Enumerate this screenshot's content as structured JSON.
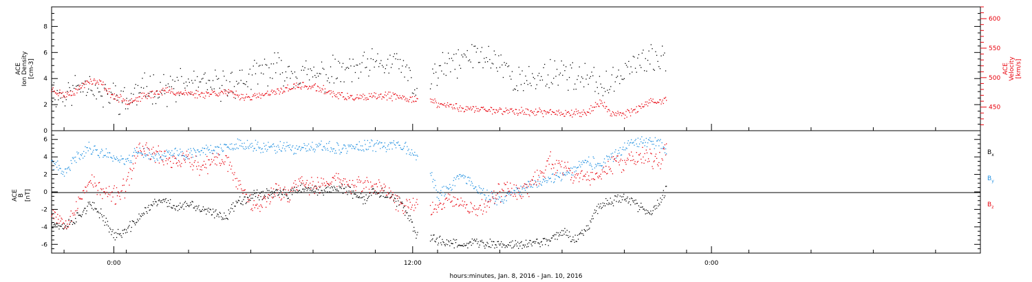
{
  "figure": {
    "xlabel": "hours:minutes, Jan.  8, 2016 - Jan. 10, 2016",
    "x_tick_labels": [
      "0:00",
      "12:00",
      "0:00"
    ],
    "x_tick_hours": [
      0,
      12,
      24
    ],
    "x_range_hours": [
      -2.5,
      34.8
    ],
    "data_gap_hours": [
      12.2,
      12.7
    ],
    "colors": {
      "black": "#000000",
      "red": "#e8000b",
      "blue": "#1f8fe0"
    }
  },
  "panels": [
    {
      "id": "density-velocity",
      "left_ylabel_lines": [
        "ACE",
        "Ion Density"
      ],
      "left_ylabel_units": "[cm-3]",
      "right_ylabel_lines": [
        "ACE",
        "Velocity"
      ],
      "right_ylabel_units": "[km/s]",
      "left_ticks": [
        "0",
        "2",
        "4",
        "6",
        "8"
      ],
      "right_ticks": [
        "450",
        "500",
        "550",
        "600"
      ]
    },
    {
      "id": "magnetic-field",
      "ylabel_lines": [
        "ACE",
        "B"
      ],
      "ylabel_units": "[nT]",
      "ticks": [
        "-6",
        "-4",
        "-2",
        "0",
        "2",
        "4",
        "6"
      ],
      "legend": [
        {
          "label": "Bx",
          "color": "#000000"
        },
        {
          "label": "By",
          "color": "#1f8fe0"
        },
        {
          "label": "Bz",
          "color": "#e8000b"
        }
      ]
    }
  ],
  "chart_data": [
    {
      "type": "scatter",
      "x_unit": "hours from 0:00 Jan. 9, 2016",
      "ylim": [
        0,
        9.5
      ],
      "y2lim": [
        410,
        620
      ],
      "series": [
        {
          "name": "ACE Ion Density",
          "axis": "left",
          "color": "#000000",
          "x": [
            -2.5,
            -2,
            -1.5,
            -1,
            -0.5,
            0,
            0.5,
            1,
            1.5,
            2,
            2.5,
            3,
            3.5,
            4,
            4.5,
            5,
            5.5,
            6,
            6.5,
            7,
            7.5,
            8,
            8.5,
            9,
            9.5,
            10,
            10.5,
            11,
            11.5,
            12.2,
            12.7,
            13,
            13.5,
            14,
            14.5,
            15,
            15.5,
            16,
            16.5,
            17,
            17.5,
            18,
            18.5,
            19,
            19.5,
            20,
            20.5,
            21,
            21.5,
            22,
            22.2
          ],
          "y": [
            3.0,
            2.6,
            3.4,
            3.8,
            2.5,
            2.8,
            2.2,
            3.0,
            3.4,
            3.2,
            3.3,
            3.6,
            3.5,
            3.4,
            3.6,
            3.8,
            4.0,
            4.6,
            4.8,
            4.6,
            4.4,
            4.2,
            4.3,
            4.5,
            4.6,
            4.8,
            5.0,
            5.1,
            5.3,
            2.5,
            4.0,
            4.5,
            5.0,
            5.5,
            5.8,
            5.6,
            5.3,
            4.2,
            3.6,
            4.0,
            4.4,
            4.6,
            4.2,
            3.8,
            3.6,
            3.4,
            4.8,
            5.4,
            5.2,
            5.6,
            5.8
          ]
        },
        {
          "name": "ACE Velocity",
          "axis": "right",
          "color": "#e8000b",
          "x": [
            -2.5,
            -2,
            -1.5,
            -1,
            -0.5,
            0,
            0.5,
            1,
            1.5,
            2,
            2.5,
            3,
            3.5,
            4,
            4.5,
            5,
            5.5,
            6,
            6.5,
            7,
            7.5,
            8,
            8.5,
            9,
            9.5,
            10,
            10.5,
            11,
            11.5,
            12.2,
            12.7,
            13,
            13.5,
            14,
            14.5,
            15,
            15.5,
            16,
            16.5,
            17,
            17.5,
            18,
            18.5,
            19,
            19.5,
            20,
            20.5,
            21,
            21.5,
            22,
            22.2
          ],
          "y": [
            480,
            470,
            478,
            495,
            490,
            468,
            460,
            465,
            472,
            478,
            475,
            473,
            472,
            474,
            475,
            470,
            466,
            470,
            475,
            482,
            486,
            484,
            478,
            470,
            466,
            465,
            468,
            469,
            466,
            463,
            462,
            455,
            452,
            448,
            446,
            446,
            444,
            443,
            442,
            441,
            441,
            440,
            441,
            440,
            458,
            440,
            438,
            447,
            457,
            458,
            468
          ]
        }
      ]
    },
    {
      "type": "scatter",
      "x_unit": "hours from 0:00 Jan. 9, 2016",
      "ylim": [
        -7,
        7
      ],
      "series": [
        {
          "name": "Bx",
          "color": "#000000",
          "x": [
            -2.5,
            -2,
            -1.5,
            -1,
            -0.5,
            0,
            0.5,
            1,
            1.5,
            2,
            2.5,
            3,
            3.5,
            4,
            4.5,
            5,
            5.5,
            6,
            6.5,
            7,
            7.5,
            8,
            8.5,
            9,
            9.5,
            10,
            10.5,
            11,
            11.5,
            12.2,
            12.7,
            13,
            13.5,
            14,
            14.5,
            15,
            15.5,
            16,
            16.5,
            17,
            17.5,
            18,
            18.5,
            19,
            19.5,
            20,
            20.5,
            21,
            21.5,
            22,
            22.2
          ],
          "y": [
            -3.5,
            -4.0,
            -3.0,
            -1.5,
            -2.5,
            -5.0,
            -4.5,
            -3.0,
            -1.5,
            -1.0,
            -1.8,
            -1.5,
            -2.0,
            -2.5,
            -2.8,
            -1.0,
            -0.5,
            -0.2,
            0.0,
            -0.5,
            0.5,
            0.0,
            0.3,
            0.5,
            0.0,
            -1.0,
            0.2,
            -0.5,
            -1.2,
            -5.0,
            -5.2,
            -5.5,
            -5.8,
            -5.9,
            -5.8,
            -6.0,
            -6.0,
            -6.0,
            -6.0,
            -5.8,
            -5.5,
            -4.5,
            -5.5,
            -4.0,
            -1.5,
            -1.0,
            -0.5,
            -1.5,
            -2.5,
            -1.0,
            0.5
          ]
        },
        {
          "name": "By",
          "color": "#1f8fe0",
          "x": [
            -2.5,
            -2,
            -1.5,
            -1,
            -0.5,
            0,
            0.5,
            1,
            1.5,
            2,
            2.5,
            3,
            3.5,
            4,
            4.5,
            5,
            5.5,
            6,
            6.5,
            7,
            7.5,
            8,
            8.5,
            9,
            9.5,
            10,
            10.5,
            11,
            11.5,
            12.2,
            12.7,
            13,
            13.5,
            14,
            14.5,
            15,
            15.5,
            16,
            16.5,
            17,
            17.5,
            18,
            18.5,
            19,
            19.5,
            20,
            20.5,
            21,
            21.5,
            22,
            22.2
          ],
          "y": [
            3.5,
            2.0,
            4.0,
            5.0,
            4.5,
            4.0,
            3.5,
            4.8,
            4.0,
            4.2,
            4.4,
            4.3,
            4.8,
            4.9,
            5.0,
            5.3,
            5.2,
            5.1,
            5.0,
            5.0,
            4.9,
            5.0,
            5.1,
            5.0,
            5.1,
            5.1,
            5.3,
            5.3,
            5.6,
            4.0,
            2.5,
            -0.5,
            0.5,
            2.0,
            0.5,
            -0.5,
            -1.0,
            0.0,
            0.5,
            1.0,
            1.5,
            2.0,
            2.5,
            3.5,
            3.0,
            4.0,
            5.0,
            5.5,
            5.8,
            5.5,
            4.5
          ]
        },
        {
          "name": "Bz",
          "color": "#e8000b",
          "x": [
            -2.5,
            -2,
            -1.5,
            -1,
            -0.5,
            0,
            0.5,
            1,
            1.5,
            2,
            2.5,
            3,
            3.5,
            4,
            4.5,
            5,
            5.5,
            6,
            6.5,
            7,
            7.5,
            8,
            8.5,
            9,
            9.5,
            10,
            10.5,
            11,
            11.5,
            12.2,
            12.7,
            13,
            13.5,
            14,
            14.5,
            15,
            15.5,
            16,
            16.5,
            17,
            17.5,
            18,
            18.5,
            19,
            19.5,
            20,
            20.5,
            21,
            21.5,
            22,
            22.2
          ],
          "y": [
            -2.0,
            -3.5,
            -2.0,
            1.5,
            0.0,
            -0.5,
            0.5,
            5.0,
            4.5,
            4.0,
            3.5,
            3.8,
            2.5,
            3.5,
            3.8,
            1.0,
            -1.0,
            -1.5,
            0.5,
            -0.5,
            1.5,
            0.5,
            1.0,
            1.5,
            0.5,
            1.0,
            0.5,
            0.0,
            -1.5,
            -1.5,
            -2.0,
            -1.5,
            -0.5,
            -1.5,
            -2.0,
            -1.5,
            0.0,
            0.5,
            0.0,
            1.5,
            3.5,
            2.5,
            2.0,
            1.5,
            2.0,
            3.0,
            3.5,
            3.8,
            4.0,
            3.5,
            5.5
          ]
        }
      ]
    }
  ]
}
